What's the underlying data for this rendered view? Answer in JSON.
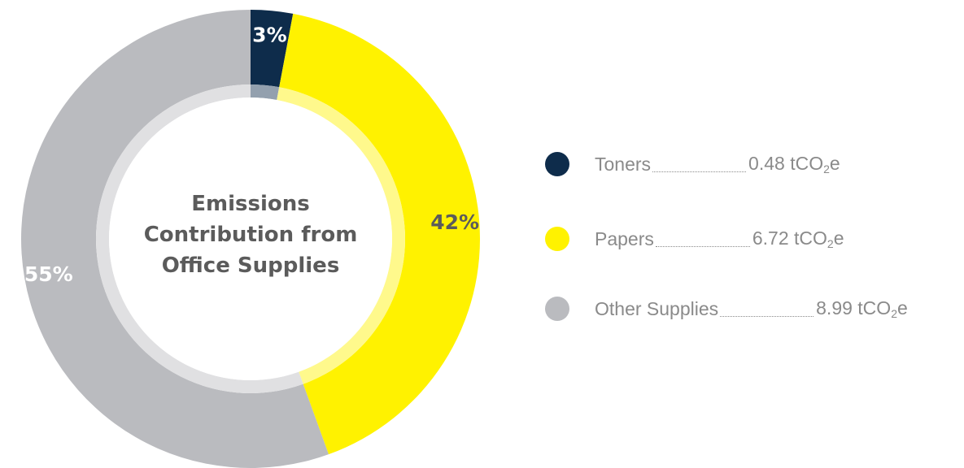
{
  "chart_data": {
    "type": "pie",
    "variant": "donut",
    "title_lines": [
      "Emissions",
      "Contribution from",
      "Office Supplies"
    ],
    "slices": [
      {
        "label": "Toners",
        "percent": 3,
        "percent_label": "3%",
        "value": 0.48,
        "value_prefix": "0.48 tCO",
        "unit_sub": "2",
        "unit_suffix": "e",
        "color": "#0e2c4b",
        "label_color": "#ffffff"
      },
      {
        "label": "Papers",
        "percent": 42,
        "percent_label": "42%",
        "value": 6.72,
        "value_prefix": "6.72 tCO",
        "unit_sub": "2",
        "unit_suffix": "e",
        "color": "#fff200",
        "label_color": "#5b5b5b"
      },
      {
        "label": "Other Supplies",
        "percent": 55,
        "percent_label": "55%",
        "value": 8.99,
        "value_prefix": "8.99 tCO",
        "unit_sub": "2",
        "unit_suffix": "e",
        "color": "#babbbf",
        "label_color": "#ffffff"
      }
    ],
    "legend_placement": "right"
  }
}
